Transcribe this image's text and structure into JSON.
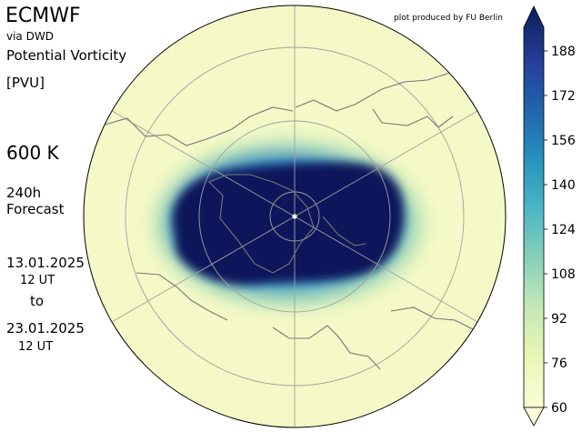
{
  "header": {
    "title": "ECMWF",
    "source": "via DWD",
    "variable": "Potential Vorticity",
    "unit": "[PVU]",
    "level": "600 K",
    "forecast_hours": "240h",
    "forecast_label": "Forecast",
    "start_date": "13.01.2025",
    "start_time": "12 UT",
    "to": "to",
    "end_date": "23.01.2025",
    "end_time": "12 UT"
  },
  "credit": "plot produced by FU Berlin",
  "colorbar": {
    "ticks": [
      "188",
      "172",
      "156",
      "140",
      "124",
      "108",
      "92",
      "76",
      "60"
    ],
    "min": 60,
    "max": 188,
    "extend": "max",
    "colors": [
      "#fbfdd8",
      "#e9f6b4",
      "#c3e8b6",
      "#86cfbb",
      "#4ab5c4",
      "#2590bd",
      "#2162aa",
      "#243b95",
      "#0c1d59"
    ]
  },
  "map": {
    "projection": "north-polar-stereographic",
    "field": "potential vorticity",
    "background_color": "#f4f9c7",
    "vortex_color": "#08195a"
  }
}
